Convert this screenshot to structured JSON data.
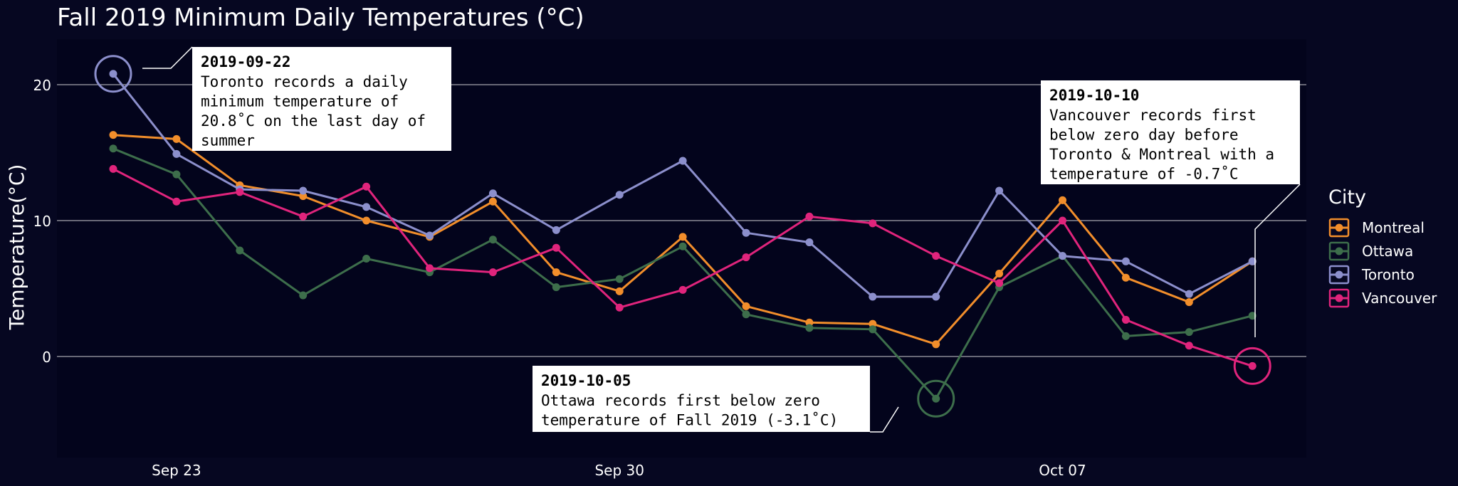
{
  "chart_data": {
    "type": "line",
    "title": "Fall 2019 Minimum Daily Temperatures (°C)",
    "xlabel": "",
    "ylabel": "Temperature(°C)",
    "x": [
      "2019-09-22",
      "2019-09-23",
      "2019-09-24",
      "2019-09-25",
      "2019-09-26",
      "2019-09-27",
      "2019-09-28",
      "2019-09-29",
      "2019-09-30",
      "2019-10-01",
      "2019-10-02",
      "2019-10-03",
      "2019-10-04",
      "2019-10-05",
      "2019-10-06",
      "2019-10-07",
      "2019-10-08",
      "2019-10-09",
      "2019-10-10"
    ],
    "x_ticks": [
      {
        "date": "2019-09-23",
        "label": "Sep 23"
      },
      {
        "date": "2019-09-30",
        "label": "Sep 30"
      },
      {
        "date": "2019-10-07",
        "label": "Oct 07"
      }
    ],
    "y_ticks": [
      0,
      10,
      20
    ],
    "ylim": [
      -7.4,
      23.3
    ],
    "grid": true,
    "legend": {
      "title": "City",
      "position": "right"
    },
    "series": [
      {
        "name": "Montreal",
        "color": "#f28e2b",
        "values": [
          16.3,
          16.0,
          12.6,
          11.8,
          10.0,
          8.8,
          11.4,
          6.2,
          4.8,
          8.8,
          3.7,
          2.5,
          2.4,
          0.9,
          6.1,
          11.5,
          5.8,
          4.0,
          7.0
        ]
      },
      {
        "name": "Ottawa",
        "color": "#3d6e4b",
        "values": [
          15.3,
          13.4,
          7.8,
          4.5,
          7.2,
          6.2,
          8.6,
          5.1,
          5.7,
          8.1,
          3.1,
          2.1,
          2.0,
          -3.1,
          5.1,
          7.4,
          1.5,
          1.8,
          3.0
        ]
      },
      {
        "name": "Toronto",
        "color": "#8c8fcc",
        "values": [
          20.8,
          14.9,
          12.3,
          12.2,
          11.0,
          8.9,
          12.0,
          9.3,
          11.9,
          14.4,
          9.1,
          8.4,
          4.4,
          4.4,
          12.2,
          7.4,
          7.0,
          4.6,
          7.0
        ]
      },
      {
        "name": "Vancouver",
        "color": "#e0247c",
        "values": [
          13.8,
          11.4,
          12.1,
          10.3,
          12.5,
          6.5,
          6.2,
          8.0,
          3.6,
          4.9,
          7.3,
          10.3,
          9.8,
          7.4,
          5.4,
          10.0,
          2.7,
          0.8,
          -0.7
        ]
      }
    ],
    "annotations": [
      {
        "date": "2019-09-22",
        "city": "Toronto",
        "heading": "2019-09-22",
        "lines": [
          "Toronto records a daily",
          "minimum temperature of",
          "20.8˚C on the last day of",
          "summer"
        ]
      },
      {
        "date": "2019-10-05",
        "city": "Ottawa",
        "heading": "2019-10-05",
        "lines": [
          "Ottawa records first below zero",
          "temperature of Fall 2019 (-3.1˚C)"
        ]
      },
      {
        "date": "2019-10-10",
        "city": "Vancouver",
        "heading": "2019-10-10",
        "lines": [
          "Vancouver records first",
          "below zero day before",
          "Toronto & Montreal with a",
          "temperature of -0.7˚C"
        ]
      }
    ]
  }
}
